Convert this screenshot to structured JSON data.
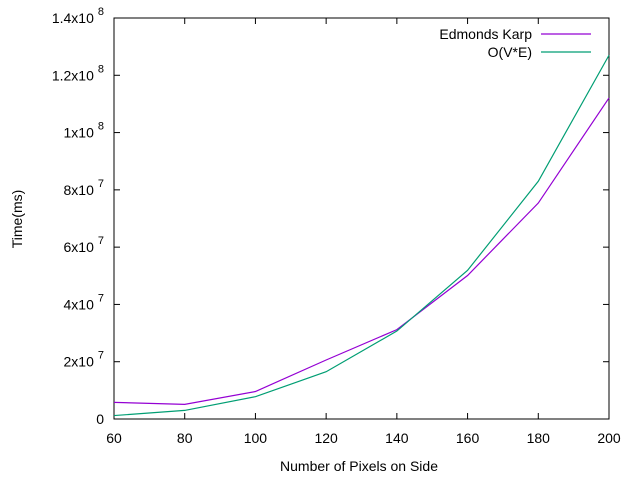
{
  "chart_data": {
    "type": "line",
    "title": "",
    "xlabel": "Number of Pixels on Side",
    "ylabel": "Time(ms)",
    "xlim": [
      60,
      200
    ],
    "ylim": [
      0,
      140000000
    ],
    "x": [
      60,
      80,
      100,
      120,
      140,
      160,
      180,
      200
    ],
    "series": [
      {
        "name": "Edmonds Karp",
        "color": "#9400d3",
        "values": [
          5800000,
          5100000,
          9600000,
          20600000,
          31200000,
          50100000,
          75400000,
          112100000
        ]
      },
      {
        "name": "O(V*E)",
        "color": "#009e73",
        "values": [
          1200000,
          3000000,
          7800000,
          16500000,
          30700000,
          51900000,
          83000000,
          127000000
        ]
      }
    ],
    "x_ticks": [
      "60",
      "80",
      "100",
      "120",
      "140",
      "160",
      "180",
      "200"
    ],
    "y_ticks": [
      {
        "value": 0,
        "mantissa": "0",
        "exponent": ""
      },
      {
        "value": 20000000,
        "mantissa": "2x10",
        "exponent": "7"
      },
      {
        "value": 40000000,
        "mantissa": "4x10",
        "exponent": "7"
      },
      {
        "value": 60000000,
        "mantissa": "6x10",
        "exponent": "7"
      },
      {
        "value": 80000000,
        "mantissa": "8x10",
        "exponent": "7"
      },
      {
        "value": 100000000,
        "mantissa": "1x10",
        "exponent": "8"
      },
      {
        "value": 120000000,
        "mantissa": "1.2x10",
        "exponent": "8"
      },
      {
        "value": 140000000,
        "mantissa": "1.4x10",
        "exponent": "8"
      }
    ],
    "grid": false,
    "legend_position": "top-right"
  }
}
